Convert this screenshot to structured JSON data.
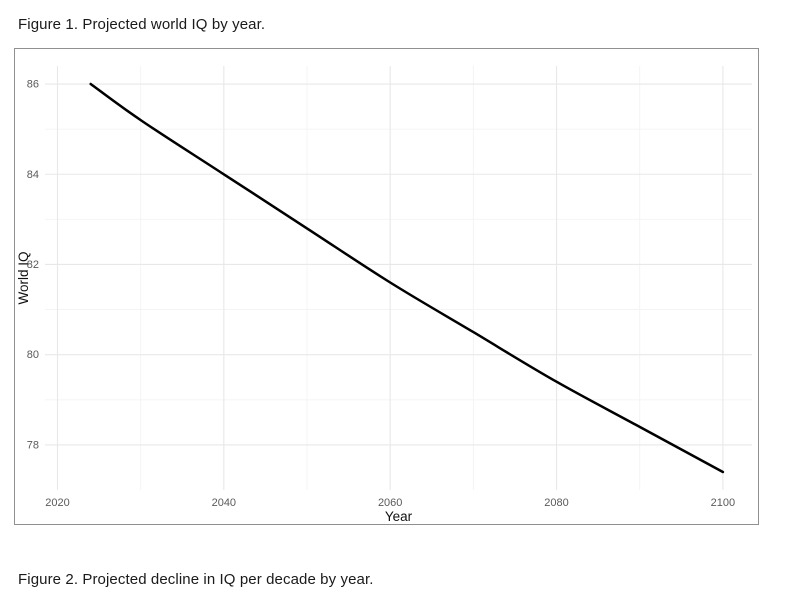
{
  "figure1": {
    "caption": "Figure 1. Projected world IQ by year."
  },
  "figure2": {
    "caption": "Figure 2. Projected decline in IQ per decade by year."
  },
  "chart_data": {
    "type": "line",
    "title": "",
    "xlabel": "Year",
    "ylabel": "World IQ",
    "x": [
      2024,
      2030,
      2040,
      2050,
      2060,
      2070,
      2080,
      2090,
      2100
    ],
    "series": [
      {
        "name": "Projected world IQ",
        "values": [
          86.0,
          85.2,
          84.0,
          82.8,
          81.6,
          80.5,
          79.4,
          78.4,
          77.4
        ],
        "color": "#000000",
        "stroke_width": 2.5
      }
    ],
    "x_ticks": [
      2020,
      2040,
      2060,
      2080,
      2100
    ],
    "y_ticks": [
      78,
      80,
      82,
      84,
      86
    ],
    "x_minor_ticks": [
      2030,
      2050,
      2070,
      2090
    ],
    "y_minor_ticks": [
      79,
      81,
      83,
      85
    ],
    "xlim": [
      2018.5,
      2103.5
    ],
    "ylim": [
      77.0,
      86.4
    ],
    "grid": "on",
    "legend": "none",
    "colors": {
      "major_grid": "#e8e8e8",
      "minor_grid": "#f3f3f3",
      "tick_label": "#5a5a5a",
      "axis_label": "#111111",
      "panel_background": "#ffffff"
    }
  }
}
